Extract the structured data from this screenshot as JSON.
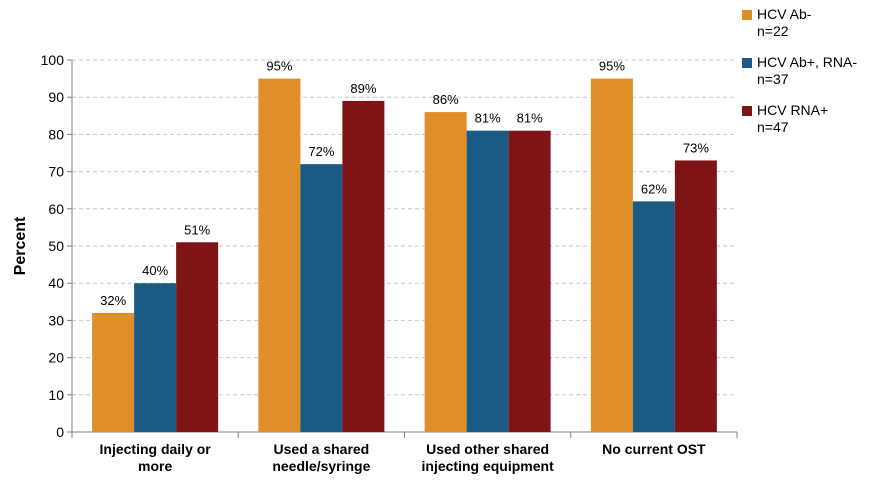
{
  "chart_data": {
    "type": "bar",
    "title": "",
    "xlabel": "",
    "ylabel": "Percent",
    "ylim": [
      0,
      100
    ],
    "yticks": [
      0,
      10,
      20,
      30,
      40,
      50,
      60,
      70,
      80,
      90,
      100
    ],
    "grid": true,
    "legend_position": "top-right",
    "categories": [
      [
        "Injecting daily or",
        "more"
      ],
      [
        "Used a shared",
        "needle/syringe"
      ],
      [
        "Used other shared",
        "injecting equipment"
      ],
      [
        "No current OST"
      ]
    ],
    "series": [
      {
        "name": "HCV Ab-",
        "sub": "n=22",
        "color": "#E08E2A",
        "values": [
          32,
          95,
          86,
          95
        ],
        "labels": [
          "32%",
          "95%",
          "86%",
          "95%"
        ]
      },
      {
        "name": "HCV Ab+, RNA-",
        "sub": "n=37",
        "color": "#1B5A82",
        "values": [
          40,
          72,
          81,
          62
        ],
        "labels": [
          "40%",
          "72%",
          "81%",
          "62%"
        ]
      },
      {
        "name": "HCV RNA+",
        "sub": "n=47",
        "color": "#7F1416",
        "values": [
          51,
          89,
          81,
          73
        ],
        "labels": [
          "51%",
          "89%",
          "81%",
          "73%"
        ]
      }
    ]
  }
}
